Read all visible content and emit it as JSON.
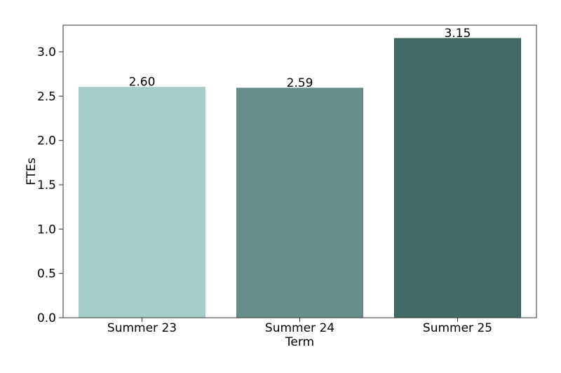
{
  "chart_data": {
    "type": "bar",
    "title": "",
    "xlabel": "Term",
    "ylabel": "FTEs",
    "categories": [
      "Summer 23",
      "Summer 24",
      "Summer 25"
    ],
    "values": [
      2.6,
      2.59,
      3.15
    ],
    "data_labels": [
      "2.60",
      "2.59",
      "3.15"
    ],
    "bar_colors": [
      "#a5cdc9",
      "#668f8b",
      "#426b67"
    ],
    "bar_edge_colors": [
      "#a5cdc9",
      "#5c8884",
      "#2f5451"
    ],
    "ylim": [
      0,
      3.3
    ],
    "yticks": [
      0.0,
      0.5,
      1.0,
      1.5,
      2.0,
      2.5,
      3.0
    ],
    "ytick_labels": [
      "0.0",
      "0.5",
      "1.0",
      "1.5",
      "2.0",
      "2.5",
      "3.0"
    ],
    "grid": false,
    "legend": "none"
  }
}
